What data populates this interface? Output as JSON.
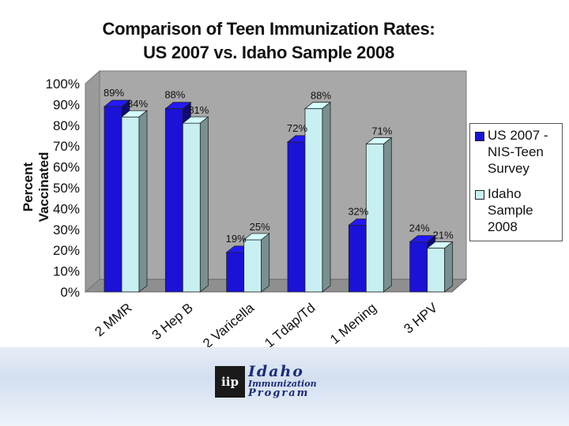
{
  "colors": {
    "us": "#1a12d6",
    "idaho": "#c8f0f2",
    "wall": "#a8a8a8",
    "floor": "#8f8f8f"
  },
  "chart_data": {
    "type": "bar",
    "title_lines": [
      "Comparison of Teen Immunization Rates:",
      "US 2007 vs. Idaho Sample 2008"
    ],
    "ylabel": "Percent Vaccinated",
    "xlabel": "",
    "ylim": [
      0,
      100
    ],
    "yticks": [
      "0%",
      "10%",
      "20%",
      "30%",
      "40%",
      "50%",
      "60%",
      "70%",
      "80%",
      "90%",
      "100%"
    ],
    "categories": [
      "2 MMR",
      "3 Hep B",
      "2 Varicella",
      "1 Tdap/Td",
      "1 Mening",
      "3 HPV"
    ],
    "series": [
      {
        "name": "US 2007 - NIS-Teen Survey",
        "values": [
          89,
          88,
          19,
          72,
          32,
          24
        ],
        "labels": [
          "89%",
          "88%",
          "19%",
          "72%",
          "32%",
          "24%"
        ]
      },
      {
        "name": "Idaho Sample 2008",
        "values": [
          84,
          81,
          25,
          88,
          71,
          21
        ],
        "labels": [
          "84%",
          "81%",
          "25%",
          "88%",
          "71%",
          "21%"
        ]
      }
    ],
    "legend_position": "right"
  },
  "legend": {
    "items": [
      {
        "label_lines": [
          "US 2007 -",
          "NIS-Teen",
          "Survey"
        ]
      },
      {
        "label_lines": [
          "Idaho",
          "Sample",
          "2008"
        ]
      }
    ]
  },
  "logo": {
    "mark": "iip",
    "line1": "Idaho",
    "line2": "Immunization",
    "line3": "Program"
  }
}
